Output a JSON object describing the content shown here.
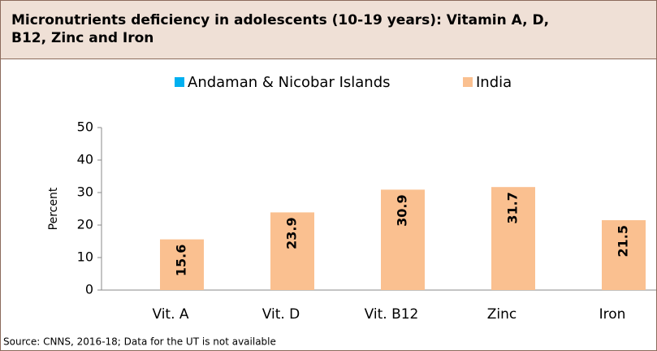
{
  "chart_data": {
    "type": "bar",
    "title": "Micronutrients deficiency in adolescents (10-19 years): Vitamin A, D, B12, Zinc and Iron",
    "y_label": "Percent",
    "categories": [
      "Vit. A",
      "Vit. D",
      "Vit. B12",
      "Zinc",
      "Iron"
    ],
    "series": [
      {
        "name": "Andaman & Nicobar Islands",
        "color": "#00b0f0",
        "values": [
          null,
          null,
          null,
          null,
          null
        ]
      },
      {
        "name": "India",
        "color": "#fac090",
        "values": [
          15.6,
          23.9,
          30.9,
          31.7,
          21.5
        ]
      }
    ],
    "ylim": [
      0,
      50
    ],
    "yticks": [
      0,
      10,
      20,
      30,
      40,
      50
    ],
    "grid": false,
    "legend": "top",
    "source": "Source: CNNS, 2016-18; Data for the UT is not available"
  }
}
